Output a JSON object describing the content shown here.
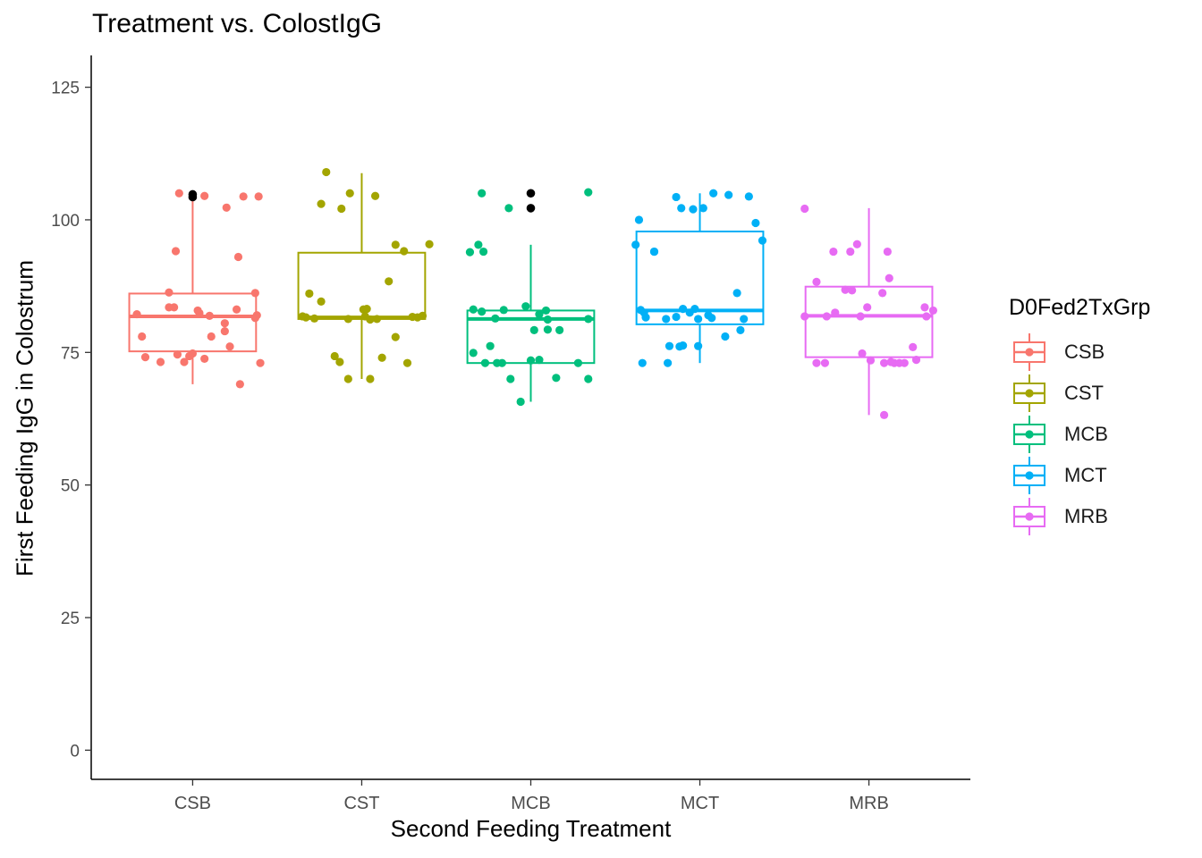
{
  "chart_data": {
    "type": "boxplot",
    "title": "Treatment vs. ColostIgG",
    "xlabel": "Second Feeding Treatment",
    "ylabel": "First Feeding IgG in Colostrum",
    "categories": [
      "CSB",
      "CST",
      "MCB",
      "MCT",
      "MRB"
    ],
    "ylim": [
      -5.5,
      131
    ],
    "yticks": [
      0,
      25,
      50,
      75,
      100,
      125
    ],
    "grid": false,
    "legend": {
      "title": "D0Fed2TxGrp",
      "position": "right",
      "items": [
        "CSB",
        "CST",
        "MCB",
        "MCT",
        "MRB"
      ]
    },
    "colors": [
      "#F8766D",
      "#A3A500",
      "#00BF7D",
      "#00B0F6",
      "#E76BF3"
    ],
    "outlier_color": "#000000",
    "boxes": [
      {
        "group": "CSB",
        "whisker_low": 69,
        "q1": 75.2,
        "median": 81.8,
        "q3": 86.1,
        "whisker_high": 103.8,
        "outliers": [
          104.8,
          104.3
        ]
      },
      {
        "group": "CST",
        "whisker_low": 70,
        "q1": 81.3,
        "median": 81.6,
        "q3": 93.8,
        "whisker_high": 108.8,
        "outliers": []
      },
      {
        "group": "MCB",
        "whisker_low": 65.7,
        "q1": 73,
        "median": 81.3,
        "q3": 82.9,
        "whisker_high": 95.3,
        "outliers": [
          105,
          102.2
        ]
      },
      {
        "group": "MCT",
        "whisker_low": 73,
        "q1": 80.3,
        "median": 82.9,
        "q3": 97.8,
        "whisker_high": 105,
        "outliers": []
      },
      {
        "group": "MRB",
        "whisker_low": 63.2,
        "q1": 74.1,
        "median": 81.9,
        "q3": 87.4,
        "whisker_high": 102.2,
        "outliers": []
      }
    ],
    "points": [
      {
        "group": "CSB",
        "values": [
          {
            "x": 0.67,
            "y": 82.2
          },
          {
            "x": 0.7,
            "y": 78
          },
          {
            "x": 0.72,
            "y": 74.1
          },
          {
            "x": 0.81,
            "y": 73.2
          },
          {
            "x": 0.86,
            "y": 86.3
          },
          {
            "x": 0.86,
            "y": 83.5
          },
          {
            "x": 0.89,
            "y": 83.5
          },
          {
            "x": 0.9,
            "y": 94.1
          },
          {
            "x": 0.91,
            "y": 74.6
          },
          {
            "x": 0.92,
            "y": 105
          },
          {
            "x": 0.95,
            "y": 73.2
          },
          {
            "x": 0.98,
            "y": 74.3
          },
          {
            "x": 1.0,
            "y": 74.8
          },
          {
            "x": 1.03,
            "y": 82.9
          },
          {
            "x": 1.04,
            "y": 82.4
          },
          {
            "x": 1.07,
            "y": 73.8
          },
          {
            "x": 1.07,
            "y": 104.5
          },
          {
            "x": 1.1,
            "y": 81.9
          },
          {
            "x": 1.11,
            "y": 78
          },
          {
            "x": 1.19,
            "y": 79
          },
          {
            "x": 1.19,
            "y": 80.5
          },
          {
            "x": 1.2,
            "y": 102.3
          },
          {
            "x": 1.22,
            "y": 76.1
          },
          {
            "x": 1.26,
            "y": 83.1
          },
          {
            "x": 1.27,
            "y": 93
          },
          {
            "x": 1.28,
            "y": 69
          },
          {
            "x": 1.3,
            "y": 104.4
          },
          {
            "x": 1.37,
            "y": 81.5
          },
          {
            "x": 1.37,
            "y": 86.2
          },
          {
            "x": 1.38,
            "y": 82
          },
          {
            "x": 1.39,
            "y": 104.4
          },
          {
            "x": 1.4,
            "y": 73
          }
        ]
      },
      {
        "group": "CST",
        "values": [
          {
            "x": 1.65,
            "y": 81.8
          },
          {
            "x": 1.67,
            "y": 81.6
          },
          {
            "x": 1.72,
            "y": 81.4
          },
          {
            "x": 1.69,
            "y": 86.1
          },
          {
            "x": 1.76,
            "y": 103
          },
          {
            "x": 1.76,
            "y": 84.6
          },
          {
            "x": 1.79,
            "y": 109
          },
          {
            "x": 1.84,
            "y": 74.3
          },
          {
            "x": 1.87,
            "y": 73.2
          },
          {
            "x": 1.88,
            "y": 102.1
          },
          {
            "x": 1.92,
            "y": 70
          },
          {
            "x": 1.92,
            "y": 81.3
          },
          {
            "x": 1.93,
            "y": 105
          },
          {
            "x": 2.01,
            "y": 83.1
          },
          {
            "x": 2.02,
            "y": 81.8
          },
          {
            "x": 2.03,
            "y": 83.2
          },
          {
            "x": 2.05,
            "y": 81.2
          },
          {
            "x": 2.05,
            "y": 70
          },
          {
            "x": 2.08,
            "y": 104.5
          },
          {
            "x": 2.09,
            "y": 81.3
          },
          {
            "x": 2.12,
            "y": 74
          },
          {
            "x": 2.16,
            "y": 88.4
          },
          {
            "x": 2.2,
            "y": 77.9
          },
          {
            "x": 2.2,
            "y": 95.3
          },
          {
            "x": 2.25,
            "y": 94.1
          },
          {
            "x": 2.27,
            "y": 73
          },
          {
            "x": 2.3,
            "y": 81.7
          },
          {
            "x": 2.33,
            "y": 81.6
          },
          {
            "x": 2.4,
            "y": 95.4
          },
          {
            "x": 2.36,
            "y": 81.9
          }
        ]
      },
      {
        "group": "MCB",
        "values": [
          {
            "x": 2.64,
            "y": 93.9
          },
          {
            "x": 2.66,
            "y": 83.1
          },
          {
            "x": 2.69,
            "y": 95.3
          },
          {
            "x": 2.71,
            "y": 82.7
          },
          {
            "x": 2.72,
            "y": 94
          },
          {
            "x": 2.71,
            "y": 105
          },
          {
            "x": 2.73,
            "y": 73
          },
          {
            "x": 2.76,
            "y": 76.2
          },
          {
            "x": 2.79,
            "y": 81.4
          },
          {
            "x": 2.66,
            "y": 74.9
          },
          {
            "x": 2.8,
            "y": 73
          },
          {
            "x": 2.83,
            "y": 73
          },
          {
            "x": 2.84,
            "y": 83
          },
          {
            "x": 2.87,
            "y": 102.2
          },
          {
            "x": 2.88,
            "y": 70
          },
          {
            "x": 2.94,
            "y": 65.7
          },
          {
            "x": 2.97,
            "y": 83.7
          },
          {
            "x": 3.0,
            "y": 73.5
          },
          {
            "x": 3.02,
            "y": 79.2
          },
          {
            "x": 3.05,
            "y": 73.6
          },
          {
            "x": 3.05,
            "y": 82.2
          },
          {
            "x": 3.1,
            "y": 79.3
          },
          {
            "x": 3.1,
            "y": 81.2
          },
          {
            "x": 3.09,
            "y": 82.9
          },
          {
            "x": 3.15,
            "y": 70.2
          },
          {
            "x": 3.17,
            "y": 79.2
          },
          {
            "x": 3.28,
            "y": 73
          },
          {
            "x": 3.34,
            "y": 81.3
          },
          {
            "x": 3.34,
            "y": 70
          },
          {
            "x": 3.34,
            "y": 105.2
          }
        ]
      },
      {
        "group": "MCT",
        "values": [
          {
            "x": 3.62,
            "y": 95.3
          },
          {
            "x": 3.64,
            "y": 100
          },
          {
            "x": 3.65,
            "y": 83
          },
          {
            "x": 3.66,
            "y": 73
          },
          {
            "x": 3.67,
            "y": 82.5
          },
          {
            "x": 3.68,
            "y": 81.6
          },
          {
            "x": 3.73,
            "y": 94
          },
          {
            "x": 3.73,
            "y": 94
          },
          {
            "x": 3.8,
            "y": 81.3
          },
          {
            "x": 3.81,
            "y": 73
          },
          {
            "x": 3.82,
            "y": 76.2
          },
          {
            "x": 3.86,
            "y": 81.7
          },
          {
            "x": 3.86,
            "y": 104.3
          },
          {
            "x": 3.88,
            "y": 76.1
          },
          {
            "x": 3.9,
            "y": 76.3
          },
          {
            "x": 3.89,
            "y": 102.2
          },
          {
            "x": 3.9,
            "y": 83.2
          },
          {
            "x": 3.94,
            "y": 82.5
          },
          {
            "x": 3.97,
            "y": 83.2
          },
          {
            "x": 3.96,
            "y": 102
          },
          {
            "x": 3.99,
            "y": 76.2
          },
          {
            "x": 3.99,
            "y": 81.3
          },
          {
            "x": 4.02,
            "y": 102.2
          },
          {
            "x": 4.05,
            "y": 82
          },
          {
            "x": 4.07,
            "y": 81.5
          },
          {
            "x": 4.08,
            "y": 105
          },
          {
            "x": 4.15,
            "y": 78
          },
          {
            "x": 4.17,
            "y": 104.7
          },
          {
            "x": 4.22,
            "y": 86.2
          },
          {
            "x": 4.24,
            "y": 79.2
          },
          {
            "x": 4.26,
            "y": 81.3
          },
          {
            "x": 4.29,
            "y": 104.4
          },
          {
            "x": 4.33,
            "y": 99.4
          },
          {
            "x": 4.37,
            "y": 96.1
          }
        ]
      },
      {
        "group": "MRB",
        "values": [
          {
            "x": 4.62,
            "y": 102.1
          },
          {
            "x": 4.62,
            "y": 81.8
          },
          {
            "x": 4.69,
            "y": 88.3
          },
          {
            "x": 4.69,
            "y": 73
          },
          {
            "x": 4.74,
            "y": 73
          },
          {
            "x": 4.75,
            "y": 81.8
          },
          {
            "x": 4.79,
            "y": 94
          },
          {
            "x": 4.8,
            "y": 82.5
          },
          {
            "x": 4.86,
            "y": 86.8
          },
          {
            "x": 4.89,
            "y": 94
          },
          {
            "x": 4.9,
            "y": 86.7
          },
          {
            "x": 4.93,
            "y": 95.4
          },
          {
            "x": 4.95,
            "y": 81.8
          },
          {
            "x": 4.96,
            "y": 74.8
          },
          {
            "x": 4.99,
            "y": 83.5
          },
          {
            "x": 5.01,
            "y": 73.5
          },
          {
            "x": 5.08,
            "y": 86.2
          },
          {
            "x": 5.09,
            "y": 63.2
          },
          {
            "x": 5.09,
            "y": 73
          },
          {
            "x": 5.11,
            "y": 94
          },
          {
            "x": 5.13,
            "y": 73.2
          },
          {
            "x": 5.12,
            "y": 89
          },
          {
            "x": 5.15,
            "y": 73
          },
          {
            "x": 5.18,
            "y": 73
          },
          {
            "x": 5.21,
            "y": 73
          },
          {
            "x": 5.26,
            "y": 76
          },
          {
            "x": 5.28,
            "y": 73.6
          },
          {
            "x": 5.33,
            "y": 83.5
          },
          {
            "x": 5.34,
            "y": 81.8
          },
          {
            "x": 5.38,
            "y": 82.9
          }
        ]
      }
    ]
  }
}
